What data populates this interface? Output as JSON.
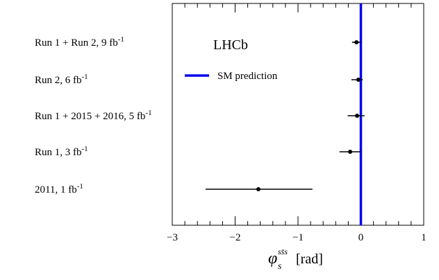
{
  "chart_data": {
    "type": "scatter",
    "orientation": "horizontal",
    "title": "",
    "annotation": "LHCb",
    "xlabel": {
      "symbol": "φ",
      "subscript": "s",
      "superscript": "ss̄s",
      "unit": "[rad]"
    },
    "ylabel": "",
    "xlim": [
      -3,
      1
    ],
    "xticks": [
      "−3",
      "−2",
      "−1",
      "0",
      "1"
    ],
    "xtick_values": [
      -3,
      -2,
      -1,
      0,
      1
    ],
    "grid": false,
    "legend": {
      "placement": "top-left",
      "entries": [
        {
          "label": "SM prediction",
          "color": "#0000ee",
          "value": 0
        }
      ]
    },
    "series": [
      {
        "categories": [
          {
            "base": "Run 1 + Run 2, 9 fb",
            "sup": "-1"
          },
          {
            "base": "Run 2, 6 fb",
            "sup": "-1"
          },
          {
            "base": "Run 1 + 2015 + 2016, 5 fb",
            "sup": "-1"
          },
          {
            "base": "Run 1, 3 fb",
            "sup": "-1"
          },
          {
            "base": "2011, 1 fb",
            "sup": "-1"
          }
        ],
        "values": [
          -0.07,
          -0.04,
          -0.06,
          -0.17,
          -1.63
        ],
        "xerr_low": [
          0.07,
          0.11,
          0.15,
          0.17,
          0.84
        ],
        "xerr_high": [
          0.07,
          0.07,
          0.12,
          0.17,
          0.86
        ]
      }
    ],
    "colors": {
      "points": "#000000",
      "sm_line": "#0000ee"
    }
  }
}
